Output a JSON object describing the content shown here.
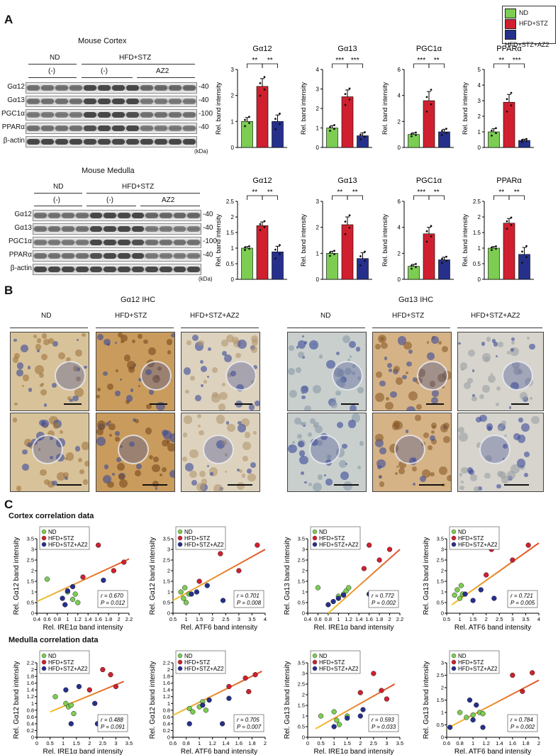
{
  "panels": {
    "a": "A",
    "b": "B",
    "c": "C"
  },
  "legend": {
    "items": [
      {
        "label": "ND",
        "color": "#7ccd52"
      },
      {
        "label": "HFD+STZ",
        "color": "#d0202f"
      },
      {
        "label": "HFD+STZ+AZ2",
        "color": "#26308c"
      }
    ]
  },
  "cortex": {
    "title": "Mouse Cortex",
    "group_nd": "ND",
    "group_hfd": "HFD+STZ",
    "sub_minus1": "(-)",
    "sub_minus2": "(-)",
    "sub_az2": "AZ2",
    "rows": [
      "Gα12",
      "Gα13",
      "PGC1α",
      "PPARα",
      "β-actin"
    ],
    "kda": [
      "40",
      "40",
      "100",
      "40"
    ],
    "kda_unit": "(kDa)"
  },
  "medulla": {
    "title": "Mouse Medulla",
    "group_nd": "ND",
    "group_hfd": "HFD+STZ",
    "sub_minus1": "(-)",
    "sub_minus2": "(-)",
    "sub_az2": "AZ2",
    "rows": [
      "Gα12",
      "Gα13",
      "PGC1α",
      "PPARα",
      "β-actin"
    ],
    "kda": [
      "40",
      "40",
      "100",
      "40"
    ],
    "kda_unit": "(kDa)"
  },
  "ihc": {
    "ga12_title": "Gα12 IHC",
    "ga13_title": "Gα13 IHC",
    "cols": [
      "ND",
      "HFD+STZ",
      "HFD+STZ+AZ2"
    ]
  },
  "corr": {
    "cortex_title": "Cortex correlation data",
    "medulla_title": "Medulla correlation data"
  },
  "chart_data": [
    {
      "type": "bar",
      "title": "Gα12",
      "ylabel": "Rel. band intensity",
      "ylim": [
        0,
        3
      ],
      "yticks": [
        0,
        1,
        2,
        3
      ],
      "categories": [
        "ND",
        "HFD+STZ",
        "HFD+STZ+AZ2"
      ],
      "values": [
        1.0,
        2.35,
        1.0
      ],
      "errors": [
        0.15,
        0.3,
        0.25
      ],
      "sig": [
        "**",
        "**"
      ]
    },
    {
      "type": "bar",
      "title": "Gα13",
      "ylabel": "Rel. band intensity",
      "ylim": [
        0,
        4
      ],
      "yticks": [
        0,
        1,
        2,
        3,
        4
      ],
      "categories": [
        "ND",
        "HFD+STZ",
        "HFD+STZ+AZ2"
      ],
      "values": [
        1.0,
        2.6,
        0.6
      ],
      "errors": [
        0.12,
        0.35,
        0.15
      ],
      "sig": [
        "***",
        "***"
      ]
    },
    {
      "type": "bar",
      "title": "PGC1α",
      "ylabel": "Rel. band intensity",
      "ylim": [
        0,
        6
      ],
      "yticks": [
        0,
        2,
        4,
        6
      ],
      "categories": [
        "ND",
        "HFD+STZ",
        "HFD+STZ+AZ2"
      ],
      "values": [
        1.0,
        3.6,
        1.2
      ],
      "errors": [
        0.12,
        0.7,
        0.2
      ],
      "sig": [
        "***",
        "**"
      ]
    },
    {
      "type": "bar",
      "title": "PPARα",
      "ylabel": "Rel. band intensity",
      "ylim": [
        0,
        5
      ],
      "yticks": [
        0,
        1,
        2,
        3,
        4,
        5
      ],
      "categories": [
        "ND",
        "HFD+STZ",
        "HFD+STZ+AZ2"
      ],
      "values": [
        1.0,
        2.9,
        0.45
      ],
      "errors": [
        0.2,
        0.5,
        0.08
      ],
      "sig": [
        "**",
        "***"
      ]
    },
    {
      "type": "bar",
      "title": "Gα12",
      "ylabel": "Rel. band intensity",
      "ylim": [
        0,
        2.5
      ],
      "yticks": [
        0,
        0.5,
        1.0,
        1.5,
        2.0,
        2.5
      ],
      "categories": [
        "ND",
        "HFD+STZ",
        "HFD+STZ+AZ2"
      ],
      "values": [
        1.0,
        1.72,
        0.88
      ],
      "errors": [
        0.05,
        0.12,
        0.18
      ],
      "sig": [
        "**",
        "**"
      ]
    },
    {
      "type": "bar",
      "title": "Gα13",
      "ylabel": "Rel. band intensity",
      "ylim": [
        0,
        3
      ],
      "yticks": [
        0,
        1,
        2,
        3
      ],
      "categories": [
        "ND",
        "HFD+STZ",
        "HFD+STZ+AZ2"
      ],
      "values": [
        1.0,
        2.1,
        0.8
      ],
      "errors": [
        0.08,
        0.3,
        0.22
      ],
      "sig": [
        "**",
        "**"
      ]
    },
    {
      "type": "bar",
      "title": "PGC1α",
      "ylabel": "Rel. band intensity",
      "ylim": [
        0,
        6
      ],
      "yticks": [
        0,
        2,
        4,
        6
      ],
      "categories": [
        "ND",
        "HFD+STZ",
        "HFD+STZ+AZ2"
      ],
      "values": [
        1.0,
        3.5,
        1.5
      ],
      "errors": [
        0.15,
        0.5,
        0.2
      ],
      "sig": [
        "***",
        "**"
      ]
    },
    {
      "type": "bar",
      "title": "PPARα",
      "ylabel": "Rel. band intensity",
      "ylim": [
        0,
        2.5
      ],
      "yticks": [
        0,
        0.5,
        1.0,
        1.5,
        2.0,
        2.5
      ],
      "categories": [
        "ND",
        "HFD+STZ",
        "HFD+STZ+AZ2"
      ],
      "values": [
        1.0,
        1.8,
        0.8
      ],
      "errors": [
        0.05,
        0.15,
        0.22
      ],
      "sig": [
        "**",
        "**"
      ]
    },
    {
      "type": "scatter",
      "xlabel": "Rel. IRE1α band intensity",
      "ylabel": "Rel. Gα12 band intensity",
      "xlim": [
        0.4,
        2.2
      ],
      "ylim": [
        0,
        3.5
      ],
      "xticks": [
        0.4,
        0.6,
        0.8,
        1.0,
        1.2,
        1.4,
        1.6,
        1.8,
        2.0,
        2.2
      ],
      "yticks": [
        0,
        0.5,
        1.0,
        1.5,
        2.0,
        2.5,
        3.0,
        3.5
      ],
      "r": "0.670",
      "p": "0.012",
      "fit": [
        [
          0.4,
          0.55
        ],
        [
          2.2,
          2.55
        ]
      ],
      "series": [
        {
          "name": "ND",
          "points": [
            [
              0.6,
              1.6
            ],
            [
              1.1,
              0.65
            ],
            [
              1.15,
              0.9
            ],
            [
              1.2,
              0.5
            ],
            [
              1.0,
              1.0
            ]
          ]
        },
        {
          "name": "HFD+STZ",
          "points": [
            [
              1.3,
              1.7
            ],
            [
              1.6,
              3.2
            ],
            [
              1.9,
              2.0
            ],
            [
              2.1,
              2.4
            ]
          ]
        },
        {
          "name": "HFD+STZ+AZ2",
          "points": [
            [
              0.9,
              0.7
            ],
            [
              0.95,
              0.4
            ],
            [
              1.0,
              1.05
            ],
            [
              1.1,
              1.25
            ],
            [
              1.7,
              1.55
            ]
          ]
        }
      ]
    },
    {
      "type": "scatter",
      "xlabel": "Rel. ATF6 band intensity",
      "ylabel": "Rel. Gα12 band intensity",
      "xlim": [
        0.5,
        4.0
      ],
      "ylim": [
        0,
        3.5
      ],
      "xticks": [
        0.5,
        1.0,
        1.5,
        2.0,
        2.5,
        3.0,
        3.5,
        4.0
      ],
      "yticks": [
        0,
        0.5,
        1.0,
        1.5,
        2.0,
        2.5,
        3.0,
        3.5
      ],
      "r": "0.701",
      "p": "0.008",
      "fit": [
        [
          0.5,
          0.6
        ],
        [
          4.0,
          3.0
        ]
      ],
      "series": [
        {
          "name": "ND",
          "points": [
            [
              0.8,
              1.0
            ],
            [
              0.9,
              0.7
            ],
            [
              0.95,
              1.2
            ],
            [
              1.0,
              0.5
            ],
            [
              1.1,
              0.9
            ]
          ]
        },
        {
          "name": "HFD+STZ",
          "points": [
            [
              1.5,
              1.5
            ],
            [
              2.3,
              2.8
            ],
            [
              3.0,
              2.0
            ],
            [
              3.7,
              3.2
            ]
          ]
        },
        {
          "name": "HFD+STZ+AZ2",
          "points": [
            [
              1.2,
              0.9
            ],
            [
              1.4,
              1.0
            ],
            [
              1.8,
              1.3
            ],
            [
              2.4,
              0.6
            ]
          ]
        }
      ]
    },
    {
      "type": "scatter",
      "xlabel": "Rel. IRE1α band intensity",
      "ylabel": "Rel. Gα13 band intensity",
      "xlim": [
        0.4,
        2.2
      ],
      "ylim": [
        0,
        3.5
      ],
      "xticks": [
        0.4,
        0.6,
        0.8,
        1.0,
        1.2,
        1.4,
        1.6,
        1.8,
        2.0,
        2.2
      ],
      "yticks": [
        0,
        0.5,
        1.0,
        1.5,
        2.0,
        2.5,
        3.0,
        3.5
      ],
      "r": "0.772",
      "p": "0.002",
      "fit": [
        [
          0.8,
          0.0
        ],
        [
          2.2,
          3.0
        ]
      ],
      "series": [
        {
          "name": "ND",
          "points": [
            [
              0.6,
              1.2
            ],
            [
              1.1,
              0.9
            ],
            [
              1.15,
              1.05
            ],
            [
              1.2,
              1.2
            ],
            [
              1.0,
              0.8
            ]
          ]
        },
        {
          "name": "HFD+STZ",
          "points": [
            [
              1.6,
              3.2
            ],
            [
              1.8,
              2.5
            ],
            [
              2.0,
              3.0
            ],
            [
              1.5,
              2.1
            ]
          ]
        },
        {
          "name": "HFD+STZ+AZ2",
          "points": [
            [
              0.8,
              0.4
            ],
            [
              0.9,
              0.55
            ],
            [
              1.0,
              0.7
            ],
            [
              1.1,
              0.85
            ],
            [
              1.6,
              0.9
            ]
          ]
        }
      ]
    },
    {
      "type": "scatter",
      "xlabel": "Rel. ATF6 band intensity",
      "ylabel": "Rel. Gα13 band intensity",
      "xlim": [
        0.5,
        4.0
      ],
      "ylim": [
        0,
        3.5
      ],
      "xticks": [
        0.5,
        1.0,
        1.5,
        2.0,
        2.5,
        3.0,
        3.5,
        4.0
      ],
      "yticks": [
        0,
        0.5,
        1.0,
        1.5,
        2.0,
        2.5,
        3.0,
        3.5
      ],
      "r": "0.721",
      "p": "0.005",
      "fit": [
        [
          0.7,
          0.4
        ],
        [
          4.0,
          3.3
        ]
      ],
      "series": [
        {
          "name": "ND",
          "points": [
            [
              0.8,
              0.85
            ],
            [
              0.9,
              1.1
            ],
            [
              1.0,
              0.7
            ],
            [
              1.05,
              1.3
            ],
            [
              1.1,
              0.9
            ]
          ]
        },
        {
          "name": "HFD+STZ",
          "points": [
            [
              2.2,
              3.0
            ],
            [
              3.0,
              2.5
            ],
            [
              3.6,
              3.2
            ],
            [
              2.0,
              1.8
            ]
          ]
        },
        {
          "name": "HFD+STZ+AZ2",
          "points": [
            [
              1.2,
              0.9
            ],
            [
              1.5,
              0.6
            ],
            [
              2.3,
              0.7
            ],
            [
              1.8,
              1.1
            ]
          ]
        }
      ]
    },
    {
      "type": "scatter",
      "xlabel": "Rel. IRE1α band intensity",
      "ylabel": "Rel. Gα12 band intensity",
      "xlim": [
        0,
        3.5
      ],
      "ylim": [
        0,
        2.2
      ],
      "xticks": [
        0,
        0.5,
        1.0,
        1.5,
        2.0,
        2.5,
        3.0,
        3.5
      ],
      "yticks": [
        0,
        0.2,
        0.4,
        0.6,
        0.8,
        1.0,
        1.2,
        1.4,
        1.6,
        1.8,
        2.0,
        2.2
      ],
      "r": "0.488",
      "p": "0.091",
      "fit": [
        [
          0.5,
          0.75
        ],
        [
          3.3,
          1.65
        ]
      ],
      "series": [
        {
          "name": "ND",
          "points": [
            [
              0.7,
              1.2
            ],
            [
              1.1,
              1.0
            ],
            [
              1.2,
              0.9
            ],
            [
              1.4,
              0.7
            ],
            [
              1.3,
              0.95
            ]
          ]
        },
        {
          "name": "HFD+STZ",
          "points": [
            [
              2.0,
              1.4
            ],
            [
              2.5,
              2.0
            ],
            [
              2.8,
              1.85
            ],
            [
              3.0,
              1.5
            ]
          ]
        },
        {
          "name": "HFD+STZ+AZ2",
          "points": [
            [
              1.1,
              1.4
            ],
            [
              1.3,
              0.4
            ],
            [
              1.6,
              1.5
            ],
            [
              2.2,
              1.0
            ],
            [
              2.3,
              0.4
            ]
          ]
        }
      ]
    },
    {
      "type": "scatter",
      "xlabel": "Rel. ATF6 band intensity",
      "ylabel": "Rel. Gα12 band intensity",
      "xlim": [
        0.6,
        2.0
      ],
      "ylim": [
        0,
        2.2
      ],
      "xticks": [
        0.6,
        0.8,
        1.0,
        1.2,
        1.4,
        1.6,
        1.8,
        2.0
      ],
      "yticks": [
        0,
        0.2,
        0.4,
        0.6,
        0.8,
        1.0,
        1.2,
        1.4,
        1.6,
        1.8,
        2.0,
        2.2
      ],
      "r": "0.705",
      "p": "0.007",
      "fit": [
        [
          0.6,
          0.65
        ],
        [
          1.95,
          1.95
        ]
      ],
      "series": [
        {
          "name": "ND",
          "points": [
            [
              0.85,
              0.85
            ],
            [
              1.0,
              0.9
            ],
            [
              1.05,
              1.05
            ],
            [
              1.1,
              0.8
            ],
            [
              0.9,
              0.75
            ]
          ]
        },
        {
          "name": "HFD+STZ",
          "points": [
            [
              1.45,
              1.5
            ],
            [
              1.7,
              1.75
            ],
            [
              1.85,
              1.85
            ],
            [
              1.75,
              1.35
            ]
          ]
        },
        {
          "name": "HFD+STZ+AZ2",
          "points": [
            [
              0.85,
              0.4
            ],
            [
              1.05,
              0.95
            ],
            [
              1.15,
              1.1
            ],
            [
              1.35,
              0.4
            ],
            [
              1.45,
              1.15
            ]
          ]
        }
      ]
    },
    {
      "type": "scatter",
      "xlabel": "Rel. IRE1α band intensity",
      "ylabel": "Rel. Gα13 band intensity",
      "xlim": [
        0,
        3.5
      ],
      "ylim": [
        0,
        3.5
      ],
      "xticks": [
        0,
        0.5,
        1.0,
        1.5,
        2.0,
        2.5,
        3.0,
        3.5
      ],
      "yticks": [
        0,
        0.5,
        1.0,
        1.5,
        2.0,
        2.5,
        3.0,
        3.5
      ],
      "r": "0.593",
      "p": "0.033",
      "fit": [
        [
          0.3,
          0.4
        ],
        [
          3.3,
          2.5
        ]
      ],
      "series": [
        {
          "name": "ND",
          "points": [
            [
              0.5,
              1.0
            ],
            [
              1.0,
              1.2
            ],
            [
              1.1,
              0.8
            ],
            [
              1.2,
              0.6
            ],
            [
              1.5,
              1.0
            ]
          ]
        },
        {
          "name": "HFD+STZ",
          "points": [
            [
              2.0,
              2.1
            ],
            [
              2.5,
              3.0
            ],
            [
              2.8,
              2.2
            ],
            [
              3.0,
              1.8
            ]
          ]
        },
        {
          "name": "HFD+STZ+AZ2",
          "points": [
            [
              1.0,
              0.5
            ],
            [
              1.5,
              0.9
            ],
            [
              2.0,
              1.0
            ],
            [
              2.1,
              1.3
            ],
            [
              2.6,
              0.5
            ]
          ]
        }
      ]
    },
    {
      "type": "scatter",
      "xlabel": "Rel. ATF6 band intensity",
      "ylabel": "Rel. Gα13 band intensity",
      "xlim": [
        0.6,
        2.0
      ],
      "ylim": [
        0,
        3.0
      ],
      "xticks": [
        0.6,
        0.8,
        1.0,
        1.2,
        1.4,
        1.6,
        1.8,
        2.0
      ],
      "yticks": [
        0,
        0.5,
        1.0,
        1.5,
        2.0,
        2.5,
        3.0
      ],
      "r": "0.784",
      "p": "0.002",
      "fit": [
        [
          0.6,
          0.35
        ],
        [
          2.0,
          2.3
        ]
      ],
      "series": [
        {
          "name": "ND",
          "points": [
            [
              0.8,
              1.0
            ],
            [
              0.9,
              0.8
            ],
            [
              1.0,
              0.9
            ],
            [
              1.1,
              1.0
            ],
            [
              1.15,
              0.95
            ]
          ]
        },
        {
          "name": "HFD+STZ",
          "points": [
            [
              1.6,
              2.5
            ],
            [
              1.75,
              1.85
            ],
            [
              1.9,
              2.6
            ]
          ]
        },
        {
          "name": "HFD+STZ+AZ2",
          "points": [
            [
              0.65,
              0.4
            ],
            [
              0.95,
              1.5
            ],
            [
              1.05,
              1.3
            ],
            [
              1.0,
              0.7
            ],
            [
              1.15,
              0.4
            ]
          ]
        }
      ]
    }
  ]
}
